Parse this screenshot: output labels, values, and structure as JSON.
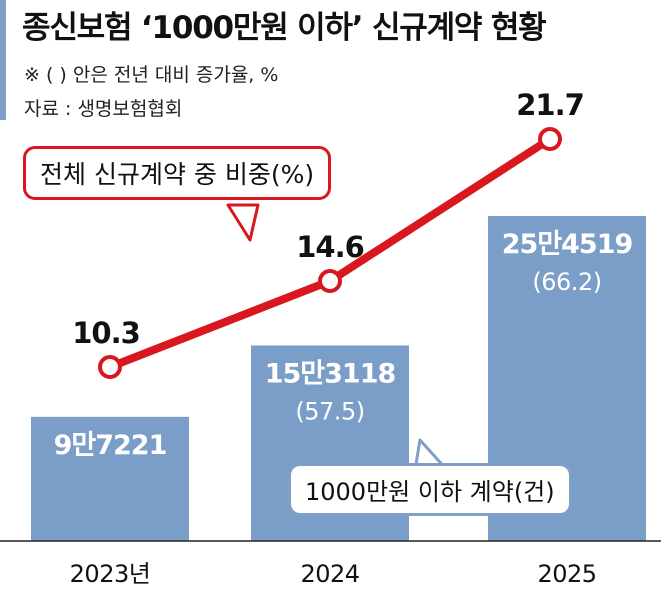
{
  "header": {
    "title": "종신보험 ‘1000만원 이하’ 신규계약 현황",
    "note": "※ (  ) 안은 전년 대비 증가율, %",
    "source": "자료 : 생명보험협회"
  },
  "colors": {
    "bar": "#7b9ec8",
    "line": "#d9171f",
    "accent": "#7fa0c6"
  },
  "chart_data": {
    "type": "bar+line",
    "categories": [
      "2023년",
      "2024",
      "2025"
    ],
    "bar_series": {
      "name": "1000만원 이하 계약(건)",
      "values": [
        97221,
        153118,
        254519
      ],
      "labels": [
        "9만7221",
        "15만3118",
        "25만4519"
      ],
      "growth_labels": [
        "",
        "(57.5)",
        "(66.2)"
      ]
    },
    "line_series": {
      "name": "전체 신규계약 중 비중(%)",
      "values": [
        10.3,
        14.6,
        21.7
      ],
      "labels": [
        "10.3",
        "14.6",
        "21.7"
      ]
    }
  }
}
